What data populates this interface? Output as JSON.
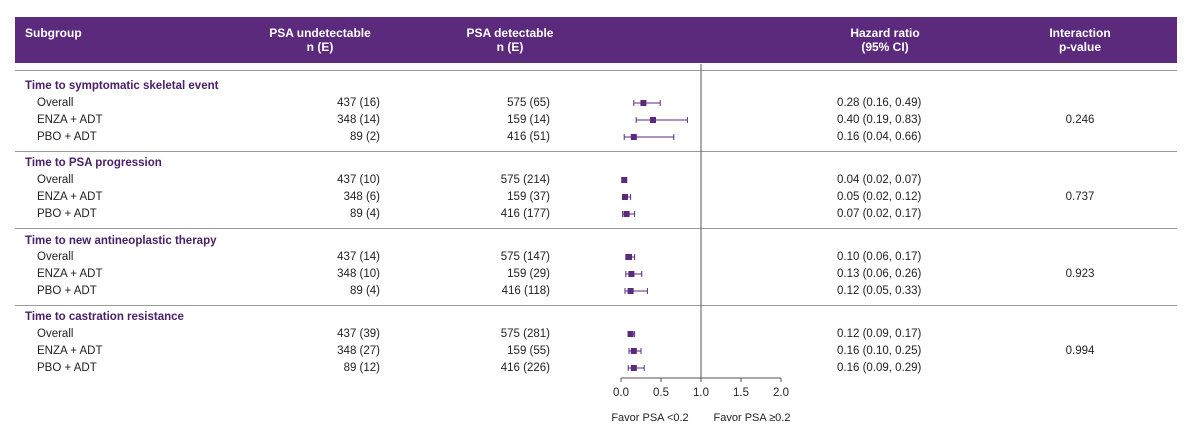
{
  "header": {
    "subgroup": "Subgroup",
    "undetectable_1": "PSA undetectable",
    "undetectable_2": "n (E)",
    "detectable_1": "PSA detectable",
    "detectable_2": "n (E)",
    "hr_1": "Hazard ratio",
    "hr_2": "(95% CI)",
    "p_1": "Interaction",
    "p_2": "p-value"
  },
  "sections": [
    {
      "title": "Time to symptomatic skeletal event",
      "p_value": "0.246",
      "rows": [
        {
          "label": "Overall",
          "und": "437 (16)",
          "det": "575 (65)",
          "hr_text": "0.28 (0.16, 0.49)"
        },
        {
          "label": "ENZA + ADT",
          "und": "348 (14)",
          "det": "159 (14)",
          "hr_text": "0.40 (0.19, 0.83)"
        },
        {
          "label": "PBO + ADT",
          "und": "89 (2)",
          "det": "416 (51)",
          "hr_text": "0.16 (0.04, 0.66)"
        }
      ]
    },
    {
      "title": "Time to PSA progression",
      "p_value": "0.737",
      "rows": [
        {
          "label": "Overall",
          "und": "437 (10)",
          "det": "575 (214)",
          "hr_text": "0.04 (0.02, 0.07)"
        },
        {
          "label": "ENZA + ADT",
          "und": "348 (6)",
          "det": "159 (37)",
          "hr_text": "0.05 (0.02, 0.12)"
        },
        {
          "label": "PBO + ADT",
          "und": "89 (4)",
          "det": "416 (177)",
          "hr_text": "0.07 (0.02, 0.17)"
        }
      ]
    },
    {
      "title": "Time to new antineoplastic therapy",
      "p_value": "0.923",
      "rows": [
        {
          "label": "Overall",
          "und": "437 (14)",
          "det": "575 (147)",
          "hr_text": "0.10 (0.06, 0.17)"
        },
        {
          "label": "ENZA + ADT",
          "und": "348 (10)",
          "det": "159 (29)",
          "hr_text": "0.13 (0.06, 0.26)"
        },
        {
          "label": "PBO + ADT",
          "und": "89 (4)",
          "det": "416 (118)",
          "hr_text": "0.12 (0.05, 0.33)"
        }
      ]
    },
    {
      "title": "Time to castration resistance",
      "p_value": "0.994",
      "rows": [
        {
          "label": "Overall",
          "und": "437 (39)",
          "det": "575 (281)",
          "hr_text": "0.12 (0.09, 0.17)"
        },
        {
          "label": "ENZA + ADT",
          "und": "348 (27)",
          "det": "159 (55)",
          "hr_text": "0.16 (0.10, 0.25)"
        },
        {
          "label": "PBO + ADT",
          "und": "89 (12)",
          "det": "416 (226)",
          "hr_text": "0.16 (0.09, 0.29)"
        }
      ]
    }
  ],
  "chart_data": {
    "type": "forest",
    "title": "",
    "xlim": [
      0.0,
      2.0
    ],
    "reference_line": 1.0,
    "ticks": [
      "0.0",
      "0.5",
      "1.0",
      "1.5",
      "2.0"
    ],
    "tick_values": [
      0.0,
      0.5,
      1.0,
      1.5,
      2.0
    ],
    "favor_left": "Favor PSA <0.2",
    "favor_right": "Favor PSA ≥0.2",
    "marker_color": "#5b2a7c",
    "points": [
      {
        "section": "Time to symptomatic skeletal event",
        "label": "Overall",
        "hr": 0.28,
        "lo": 0.16,
        "hi": 0.49
      },
      {
        "section": "Time to symptomatic skeletal event",
        "label": "ENZA + ADT",
        "hr": 0.4,
        "lo": 0.19,
        "hi": 0.83
      },
      {
        "section": "Time to symptomatic skeletal event",
        "label": "PBO + ADT",
        "hr": 0.16,
        "lo": 0.04,
        "hi": 0.66
      },
      {
        "section": "Time to PSA progression",
        "label": "Overall",
        "hr": 0.04,
        "lo": 0.02,
        "hi": 0.07
      },
      {
        "section": "Time to PSA progression",
        "label": "ENZA + ADT",
        "hr": 0.05,
        "lo": 0.02,
        "hi": 0.12
      },
      {
        "section": "Time to PSA progression",
        "label": "PBO + ADT",
        "hr": 0.07,
        "lo": 0.02,
        "hi": 0.17
      },
      {
        "section": "Time to new antineoplastic therapy",
        "label": "Overall",
        "hr": 0.1,
        "lo": 0.06,
        "hi": 0.17
      },
      {
        "section": "Time to new antineoplastic therapy",
        "label": "ENZA + ADT",
        "hr": 0.13,
        "lo": 0.06,
        "hi": 0.26
      },
      {
        "section": "Time to new antineoplastic therapy",
        "label": "PBO + ADT",
        "hr": 0.12,
        "lo": 0.05,
        "hi": 0.33
      },
      {
        "section": "Time to castration resistance",
        "label": "Overall",
        "hr": 0.12,
        "lo": 0.09,
        "hi": 0.17
      },
      {
        "section": "Time to castration resistance",
        "label": "ENZA + ADT",
        "hr": 0.16,
        "lo": 0.1,
        "hi": 0.25
      },
      {
        "section": "Time to castration resistance",
        "label": "PBO + ADT",
        "hr": 0.16,
        "lo": 0.09,
        "hi": 0.29
      }
    ]
  }
}
